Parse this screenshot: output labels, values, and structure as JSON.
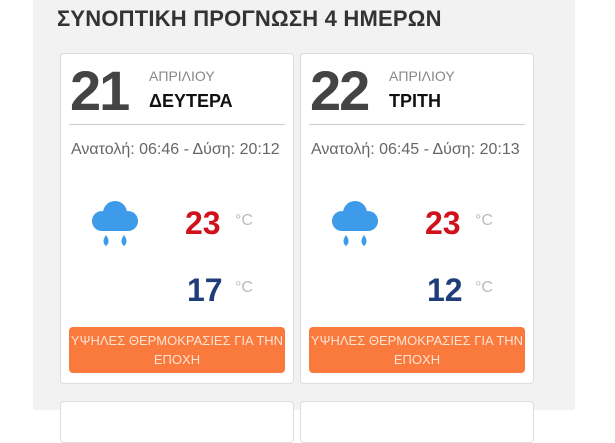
{
  "title": "ΣΥΝΟΠΤΙΚΗ ΠΡΟΓΝΩΣΗ 4 ΗΜΕΡΩΝ",
  "days": [
    {
      "day": "21",
      "month": "ΑΠΡΙΛΙΟΥ",
      "weekday": "ΔΕΥΤΕΡΑ",
      "sun": "Ανατολή: 06:46 - Δύση: 20:12",
      "icon": "rain-cloud-icon",
      "high": "23",
      "low": "17",
      "unit": "°C",
      "alert": "ΥΨΗΛΕΣ ΘΕΡΜΟΚΡΑΣΙΕΣ ΓΙΑ ΤΗΝ ΕΠΟΧΗ"
    },
    {
      "day": "22",
      "month": "ΑΠΡΙΛΙΟΥ",
      "weekday": "ΤΡΙΤΗ",
      "sun": "Ανατολή: 06:45 - Δύση: 20:13",
      "icon": "rain-cloud-icon",
      "high": "23",
      "low": "12",
      "unit": "°C",
      "alert": "ΥΨΗΛΕΣ ΘΕΡΜΟΚΡΑΣΙΕΣ ΓΙΑ ΤΗΝ ΕΠΟΧΗ"
    }
  ],
  "colors": {
    "high": "#d0111b",
    "low": "#1f3d7a",
    "alert": "#f97a3c",
    "icon": "#3d9be9"
  }
}
